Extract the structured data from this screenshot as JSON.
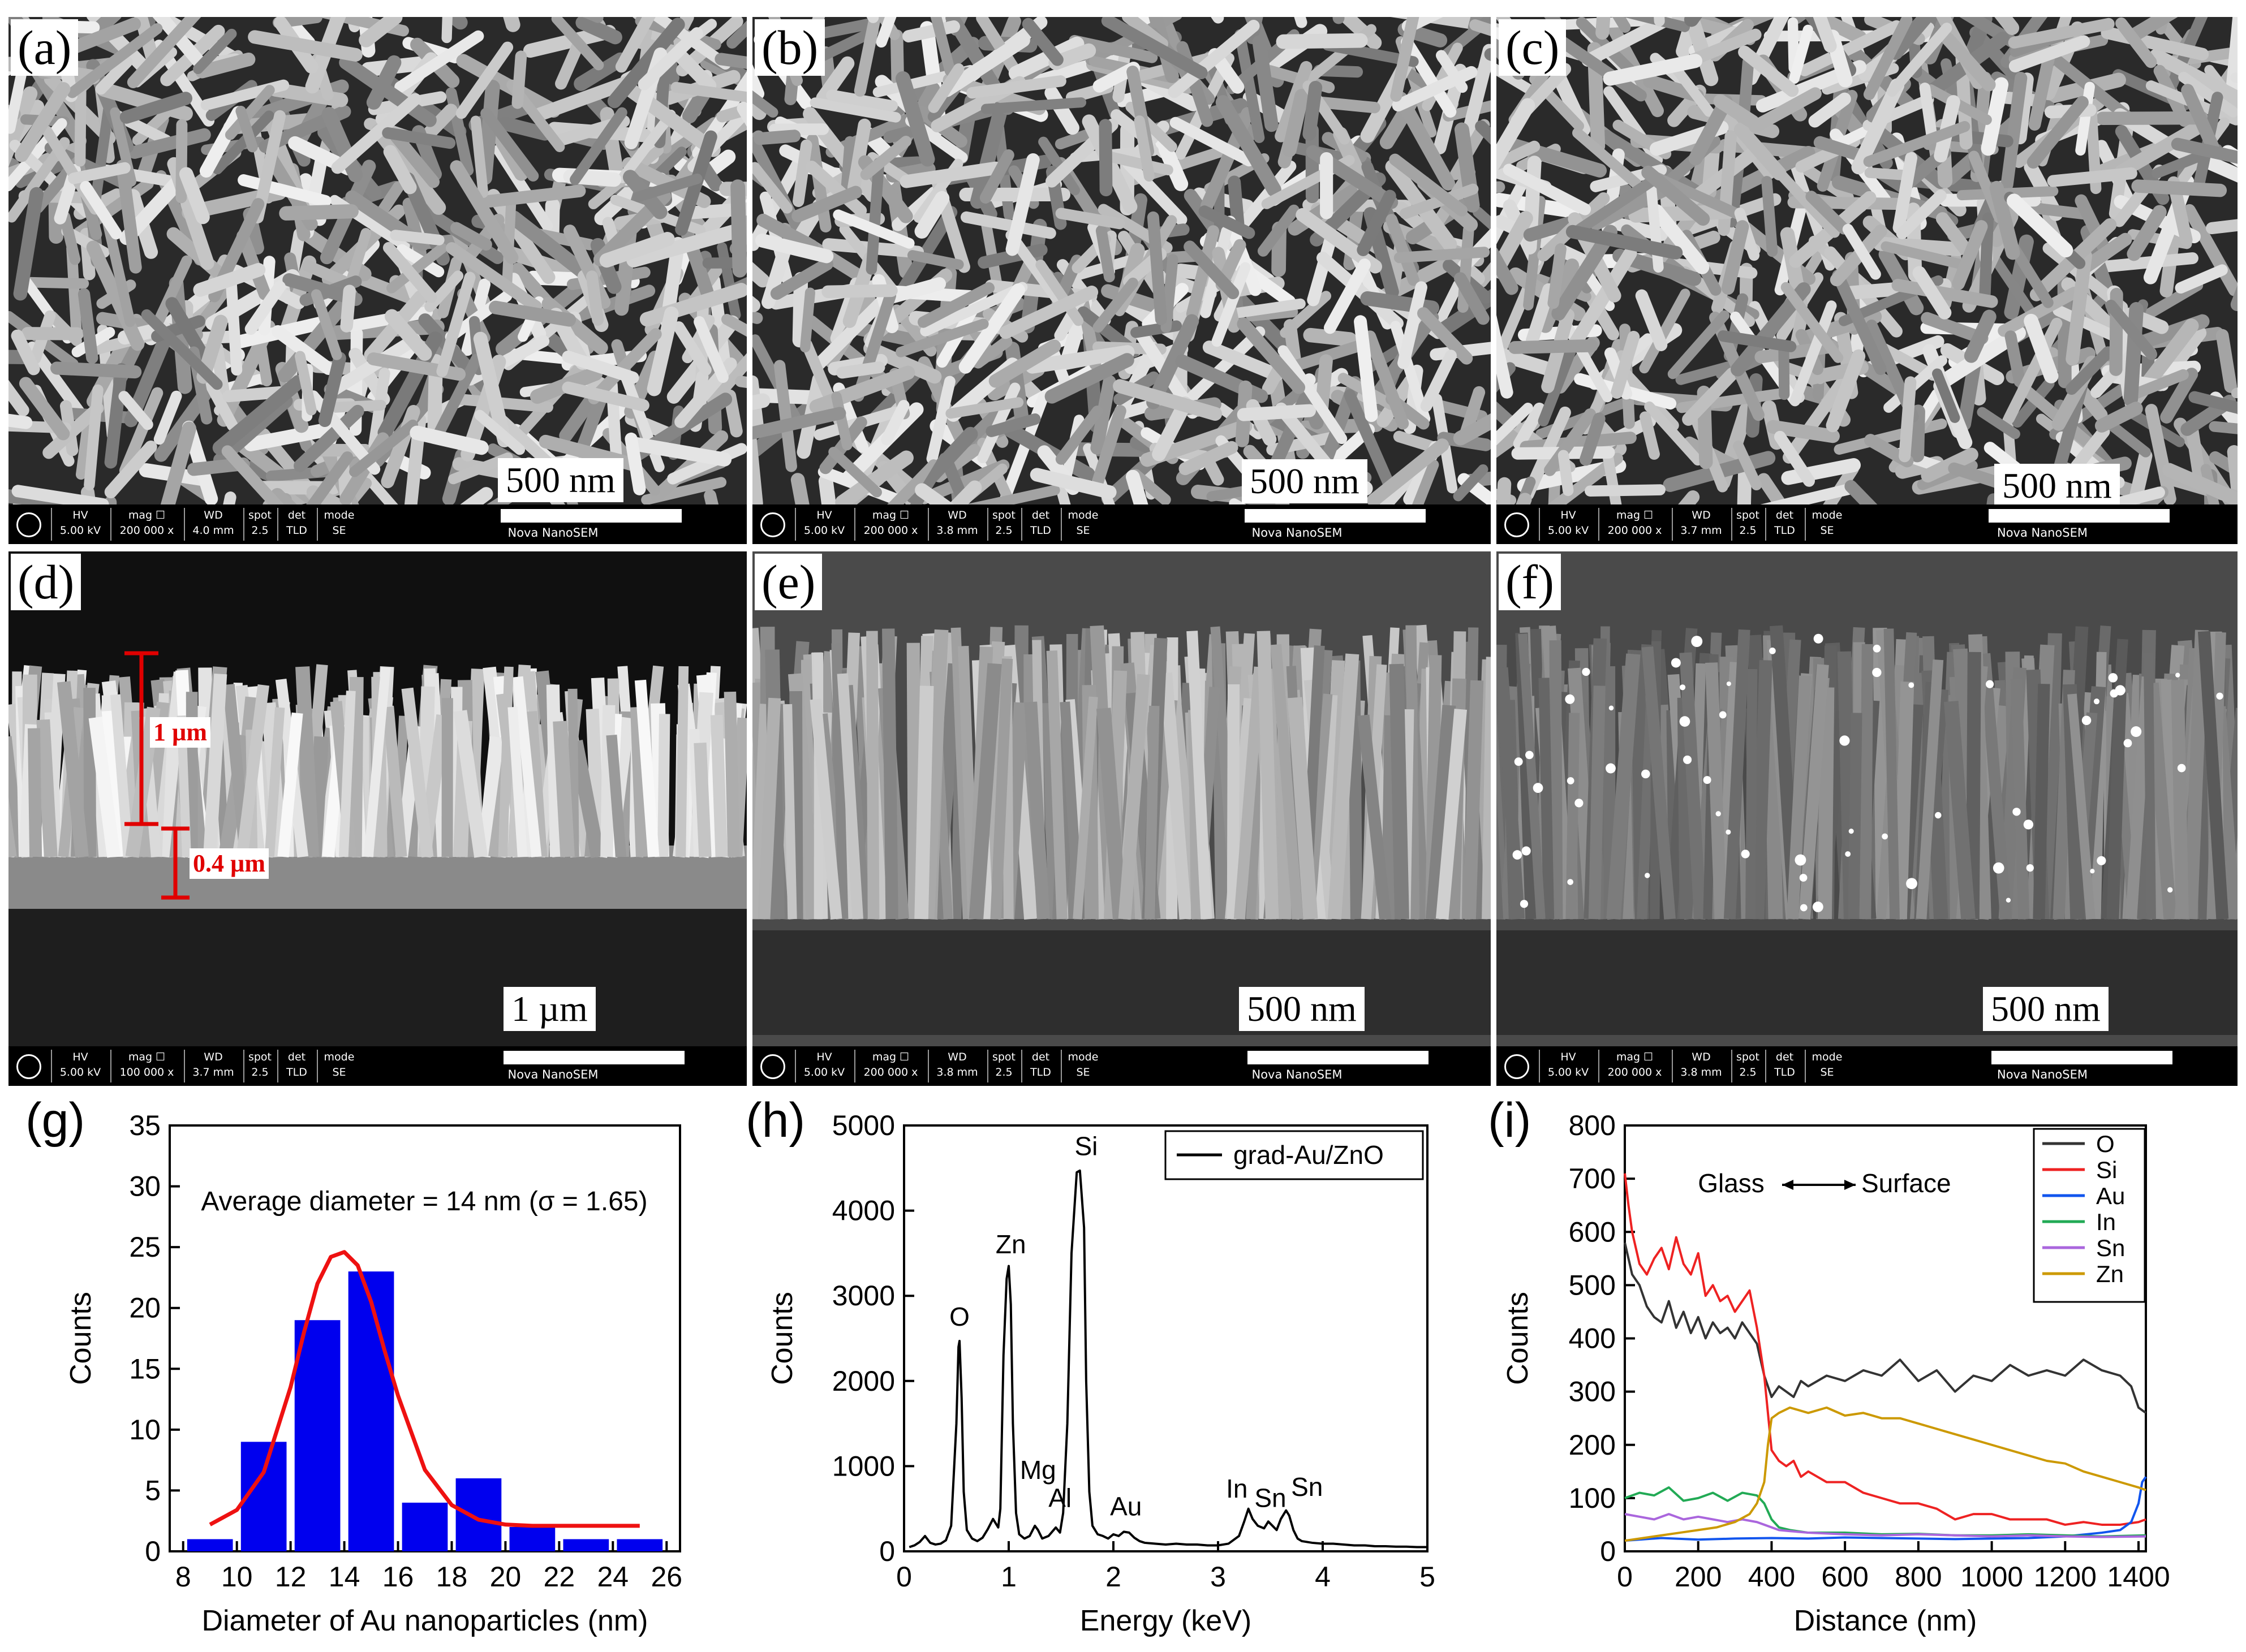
{
  "sem_panels": [
    {
      "id": "a",
      "label": "(a)",
      "scale": "500 nm",
      "info": {
        "hv": "5.00 kV",
        "mag": "200 000 x",
        "wd": "4.0 mm",
        "spot": "2.5",
        "det": "TLD",
        "mode": "SE"
      }
    },
    {
      "id": "b",
      "label": "(b)",
      "scale": "500 nm",
      "info": {
        "hv": "5.00 kV",
        "mag": "200 000 x",
        "wd": "3.8 mm",
        "spot": "2.5",
        "det": "TLD",
        "mode": "SE"
      }
    },
    {
      "id": "c",
      "label": "(c)",
      "scale": "500 nm",
      "info": {
        "hv": "5.00 kV",
        "mag": "200 000 x",
        "wd": "3.7 mm",
        "spot": "2.5",
        "det": "TLD",
        "mode": "SE"
      }
    },
    {
      "id": "d",
      "label": "(d)",
      "scale": "1 µm",
      "info": {
        "hv": "5.00 kV",
        "mag": "100 000 x",
        "wd": "3.7 mm",
        "spot": "2.5",
        "det": "TLD",
        "mode": "SE"
      },
      "measurements": [
        "1 µm",
        "0.4 µm"
      ]
    },
    {
      "id": "e",
      "label": "(e)",
      "scale": "500 nm",
      "info": {
        "hv": "5.00 kV",
        "mag": "200 000 x",
        "wd": "3.8 mm",
        "spot": "2.5",
        "det": "TLD",
        "mode": "SE"
      }
    },
    {
      "id": "f",
      "label": "(f)",
      "scale": "500 nm",
      "info": {
        "hv": "5.00 kV",
        "mag": "200 000 x",
        "wd": "3.8 mm",
        "spot": "2.5",
        "det": "TLD",
        "mode": "SE"
      }
    }
  ],
  "infobar_headers": {
    "hv": "HV",
    "mag": "mag ☐",
    "wd": "WD",
    "spot": "spot",
    "det": "det",
    "mode": "mode",
    "brand": "Nova NanoSEM"
  },
  "chart_data": [
    {
      "id": "g",
      "panel_label": "(g)",
      "type": "bar",
      "annotation": "Average diameter = 14 nm (σ = 1.65)",
      "xlabel": "Diameter of Au nanoparticles (nm)",
      "ylabel": "Counts",
      "xlim": [
        7.5,
        26.5
      ],
      "ylim": [
        0,
        35
      ],
      "xticks": [
        8,
        10,
        12,
        14,
        16,
        18,
        20,
        22,
        24,
        26
      ],
      "yticks": [
        0,
        5,
        10,
        15,
        20,
        25,
        30,
        35
      ],
      "bar_width": 1.7,
      "bars": [
        {
          "x": 9,
          "y": 1
        },
        {
          "x": 11,
          "y": 9
        },
        {
          "x": 13,
          "y": 19
        },
        {
          "x": 15,
          "y": 23
        },
        {
          "x": 17,
          "y": 4
        },
        {
          "x": 19,
          "y": 6
        },
        {
          "x": 21,
          "y": 2
        },
        {
          "x": 23,
          "y": 1
        },
        {
          "x": 25,
          "y": 1
        }
      ],
      "bar_color": "#0000ee",
      "fit": {
        "color": "#ee1111",
        "x": [
          9,
          10,
          11,
          12,
          12.5,
          13,
          13.5,
          14,
          14.5,
          15,
          15.5,
          16,
          17,
          18,
          19,
          20,
          21,
          22,
          23,
          24,
          25
        ],
        "y": [
          2.2,
          3.4,
          6.5,
          13.5,
          18,
          22,
          24.2,
          24.6,
          23.5,
          20.5,
          16.5,
          12.8,
          6.7,
          3.8,
          2.6,
          2.2,
          2.1,
          2.1,
          2.1,
          2.1,
          2.1
        ]
      }
    },
    {
      "id": "h",
      "panel_label": "(h)",
      "type": "line",
      "xlabel": "Energy (keV)",
      "ylabel": "Counts",
      "xlim": [
        0,
        5
      ],
      "ylim": [
        0,
        5000
      ],
      "xticks": [
        0,
        1,
        2,
        3,
        4,
        5
      ],
      "yticks": [
        0,
        1000,
        2000,
        3000,
        4000,
        5000
      ],
      "legend": {
        "position": "top-right",
        "entries": [
          "grad-Au/ZnO"
        ]
      },
      "series": [
        {
          "name": "grad-Au/ZnO",
          "color": "#000000",
          "x": [
            0.05,
            0.1,
            0.15,
            0.2,
            0.25,
            0.3,
            0.35,
            0.4,
            0.45,
            0.5,
            0.52,
            0.53,
            0.55,
            0.57,
            0.6,
            0.65,
            0.7,
            0.75,
            0.8,
            0.85,
            0.9,
            0.92,
            0.95,
            0.98,
            1.0,
            1.02,
            1.04,
            1.07,
            1.1,
            1.15,
            1.2,
            1.25,
            1.28,
            1.32,
            1.38,
            1.45,
            1.49,
            1.52,
            1.56,
            1.6,
            1.65,
            1.68,
            1.72,
            1.74,
            1.77,
            1.8,
            1.85,
            1.9,
            1.95,
            2.0,
            2.05,
            2.1,
            2.15,
            2.2,
            2.25,
            2.3,
            2.4,
            2.5,
            2.6,
            2.7,
            2.8,
            2.9,
            3.0,
            3.1,
            3.2,
            3.25,
            3.29,
            3.33,
            3.38,
            3.44,
            3.48,
            3.52,
            3.56,
            3.6,
            3.65,
            3.68,
            3.72,
            3.76,
            3.8,
            3.9,
            4.0,
            4.1,
            4.2,
            4.3,
            4.4,
            4.5,
            4.6,
            4.7,
            4.8,
            4.9,
            5.0
          ],
          "y": [
            50,
            70,
            110,
            180,
            100,
            80,
            90,
            130,
            300,
            1500,
            2400,
            2470,
            1800,
            700,
            250,
            150,
            120,
            160,
            260,
            380,
            280,
            500,
            2300,
            3200,
            3350,
            2900,
            1500,
            450,
            200,
            150,
            180,
            300,
            250,
            150,
            180,
            280,
            220,
            450,
            1500,
            3500,
            4450,
            4470,
            3800,
            2000,
            700,
            300,
            200,
            180,
            150,
            200,
            180,
            230,
            220,
            160,
            120,
            100,
            90,
            80,
            90,
            80,
            80,
            70,
            70,
            90,
            180,
            350,
            500,
            380,
            300,
            270,
            350,
            300,
            250,
            380,
            480,
            420,
            250,
            150,
            120,
            100,
            90,
            90,
            80,
            70,
            70,
            60,
            60,
            55,
            55,
            50,
            50
          ]
        }
      ]
    },
    {
      "id": "i",
      "panel_label": "(i)",
      "type": "line",
      "xlabel": "Distance (nm)",
      "ylabel": "Counts",
      "xlim": [
        0,
        1420
      ],
      "ylim": [
        0,
        800
      ],
      "xticks": [
        0,
        200,
        400,
        600,
        800,
        1000,
        1200,
        1400
      ],
      "yticks": [
        0,
        100,
        200,
        300,
        400,
        500,
        600,
        700,
        800
      ],
      "annotation": "Glass ←→ Surface",
      "annotation_left": "Glass",
      "annotation_right": "Surface",
      "legend": {
        "position": "top-right",
        "entries": [
          "O",
          "Si",
          "Au",
          "In",
          "Sn",
          "Zn"
        ]
      },
      "series": [
        {
          "name": "O",
          "color": "#333333",
          "x": [
            0,
            20,
            40,
            60,
            80,
            100,
            120,
            140,
            160,
            180,
            200,
            220,
            240,
            260,
            280,
            300,
            320,
            340,
            360,
            380,
            400,
            420,
            440,
            460,
            480,
            500,
            550,
            600,
            650,
            700,
            750,
            800,
            850,
            900,
            950,
            1000,
            1050,
            1100,
            1150,
            1200,
            1250,
            1300,
            1350,
            1380,
            1400,
            1420
          ],
          "y": [
            580,
            520,
            500,
            460,
            440,
            430,
            470,
            420,
            450,
            410,
            440,
            400,
            430,
            410,
            420,
            400,
            430,
            410,
            390,
            330,
            290,
            310,
            300,
            290,
            320,
            310,
            330,
            320,
            340,
            330,
            360,
            320,
            340,
            300,
            330,
            320,
            350,
            330,
            340,
            330,
            360,
            340,
            330,
            310,
            270,
            260
          ]
        },
        {
          "name": "Si",
          "color": "#ee2222",
          "x": [
            0,
            10,
            20,
            40,
            60,
            80,
            100,
            120,
            140,
            160,
            180,
            200,
            220,
            240,
            260,
            280,
            300,
            320,
            340,
            360,
            380,
            390,
            400,
            420,
            440,
            460,
            480,
            500,
            550,
            600,
            650,
            700,
            750,
            800,
            850,
            900,
            950,
            1000,
            1050,
            1100,
            1150,
            1200,
            1250,
            1300,
            1350,
            1400,
            1420
          ],
          "y": [
            710,
            650,
            600,
            540,
            520,
            550,
            570,
            530,
            590,
            540,
            520,
            560,
            480,
            500,
            470,
            480,
            450,
            470,
            490,
            420,
            330,
            260,
            190,
            170,
            160,
            170,
            140,
            150,
            130,
            130,
            110,
            100,
            90,
            90,
            80,
            60,
            70,
            70,
            60,
            60,
            60,
            50,
            55,
            50,
            50,
            55,
            60
          ]
        },
        {
          "name": "Au",
          "color": "#1155ee",
          "x": [
            0,
            100,
            200,
            300,
            400,
            500,
            600,
            700,
            800,
            900,
            1000,
            1100,
            1200,
            1300,
            1350,
            1380,
            1400,
            1410,
            1420
          ],
          "y": [
            20,
            25,
            22,
            24,
            25,
            24,
            26,
            25,
            24,
            23,
            24,
            25,
            28,
            35,
            40,
            55,
            90,
            130,
            140
          ]
        },
        {
          "name": "In",
          "color": "#22aa55",
          "x": [
            0,
            40,
            80,
            120,
            160,
            200,
            240,
            280,
            320,
            360,
            380,
            400,
            420,
            450,
            500,
            600,
            700,
            800,
            900,
            1000,
            1100,
            1200,
            1300,
            1420
          ],
          "y": [
            100,
            110,
            105,
            120,
            95,
            100,
            110,
            95,
            110,
            105,
            90,
            60,
            45,
            40,
            35,
            35,
            32,
            33,
            30,
            30,
            32,
            30,
            28,
            30
          ]
        },
        {
          "name": "Sn",
          "color": "#aa66dd",
          "x": [
            0,
            40,
            80,
            120,
            160,
            200,
            240,
            280,
            320,
            360,
            380,
            400,
            420,
            450,
            500,
            600,
            700,
            800,
            900,
            1000,
            1100,
            1200,
            1300,
            1420
          ],
          "y": [
            70,
            65,
            60,
            70,
            60,
            65,
            60,
            55,
            60,
            55,
            50,
            45,
            40,
            38,
            35,
            32,
            30,
            32,
            30,
            28,
            30,
            28,
            27,
            28
          ]
        },
        {
          "name": "Zn",
          "color": "#cc9900",
          "x": [
            0,
            50,
            100,
            150,
            200,
            250,
            300,
            340,
            360,
            380,
            390,
            400,
            420,
            450,
            500,
            550,
            600,
            650,
            700,
            750,
            800,
            850,
            900,
            950,
            1000,
            1050,
            1100,
            1150,
            1200,
            1250,
            1300,
            1350,
            1400,
            1420
          ],
          "y": [
            20,
            25,
            30,
            35,
            40,
            45,
            55,
            70,
            90,
            130,
            200,
            250,
            260,
            270,
            260,
            270,
            255,
            260,
            250,
            250,
            240,
            230,
            220,
            210,
            200,
            190,
            180,
            170,
            165,
            150,
            140,
            130,
            120,
            115
          ]
        }
      ]
    }
  ]
}
